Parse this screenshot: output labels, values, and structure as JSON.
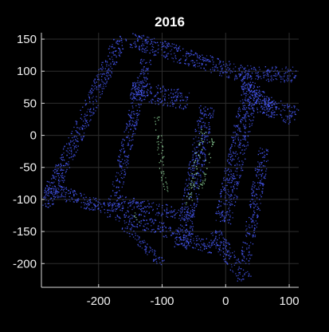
{
  "chart_data": {
    "type": "scatter",
    "title": "2016",
    "xlabel": "",
    "ylabel": "",
    "xlim": [
      -290,
      115
    ],
    "ylim": [
      -237,
      160
    ],
    "xticks": [
      -200,
      -100,
      0,
      100
    ],
    "yticks": [
      150,
      100,
      50,
      0,
      -50,
      -100,
      -150,
      -200
    ],
    "grid": true,
    "background": "#000000",
    "colors": {
      "primary_points": "#4a5cff",
      "secondary_points": "#9be6a6",
      "grid": "#2e2e2e",
      "axis": "#d9d9d9",
      "text": "#f0f0f0"
    },
    "series": [
      {
        "color": "#4a5cff",
        "structure": [
          {
            "from": [
              -165,
              155
            ],
            "to": [
              -285,
              -110
            ],
            "width": 22
          },
          {
            "from": [
              -150,
              150
            ],
            "to": [
              20,
              98
            ],
            "width": 26
          },
          {
            "from": [
              20,
              98
            ],
            "to": [
              110,
              95
            ],
            "width": 24
          },
          {
            "from": [
              20,
              98
            ],
            "to": [
              75,
              35
            ],
            "width": 22
          },
          {
            "from": [
              40,
              80
            ],
            "to": [
              -5,
              -135
            ],
            "width": 28
          },
          {
            "from": [
              -285,
              -80
            ],
            "to": [
              -20,
              -175
            ],
            "width": 22
          },
          {
            "from": [
              -180,
              -100
            ],
            "to": [
              -50,
              -125
            ],
            "width": 20
          },
          {
            "from": [
              -125,
              120
            ],
            "to": [
              -180,
              -115
            ],
            "width": 18
          },
          {
            "from": [
              -30,
              45
            ],
            "to": [
              -70,
              -175
            ],
            "width": 24
          },
          {
            "from": [
              -150,
              72
            ],
            "to": [
              -60,
              55
            ],
            "width": 30
          },
          {
            "from": [
              30,
              60
            ],
            "to": [
              110,
              30
            ],
            "width": 30
          },
          {
            "from": [
              60,
              -20
            ],
            "to": [
              30,
              -200
            ],
            "width": 18
          },
          {
            "from": [
              -20,
              -150
            ],
            "to": [
              30,
              -225
            ],
            "width": 22
          },
          {
            "from": [
              -160,
              -140
            ],
            "to": [
              -100,
              -200
            ],
            "width": 14
          }
        ]
      },
      {
        "color": "#9be6a6",
        "structure": [
          {
            "from": [
              -110,
              30
            ],
            "to": [
              -95,
              -90
            ],
            "width": 10
          },
          {
            "from": [
              -35,
              10
            ],
            "to": [
              -60,
              -110
            ],
            "width": 10
          },
          {
            "from": [
              -20,
              0
            ],
            "to": [
              -40,
              -85
            ],
            "width": 8
          },
          {
            "from": [
              -145,
              -120
            ],
            "to": [
              -135,
              -140
            ],
            "width": 6
          }
        ]
      }
    ]
  }
}
